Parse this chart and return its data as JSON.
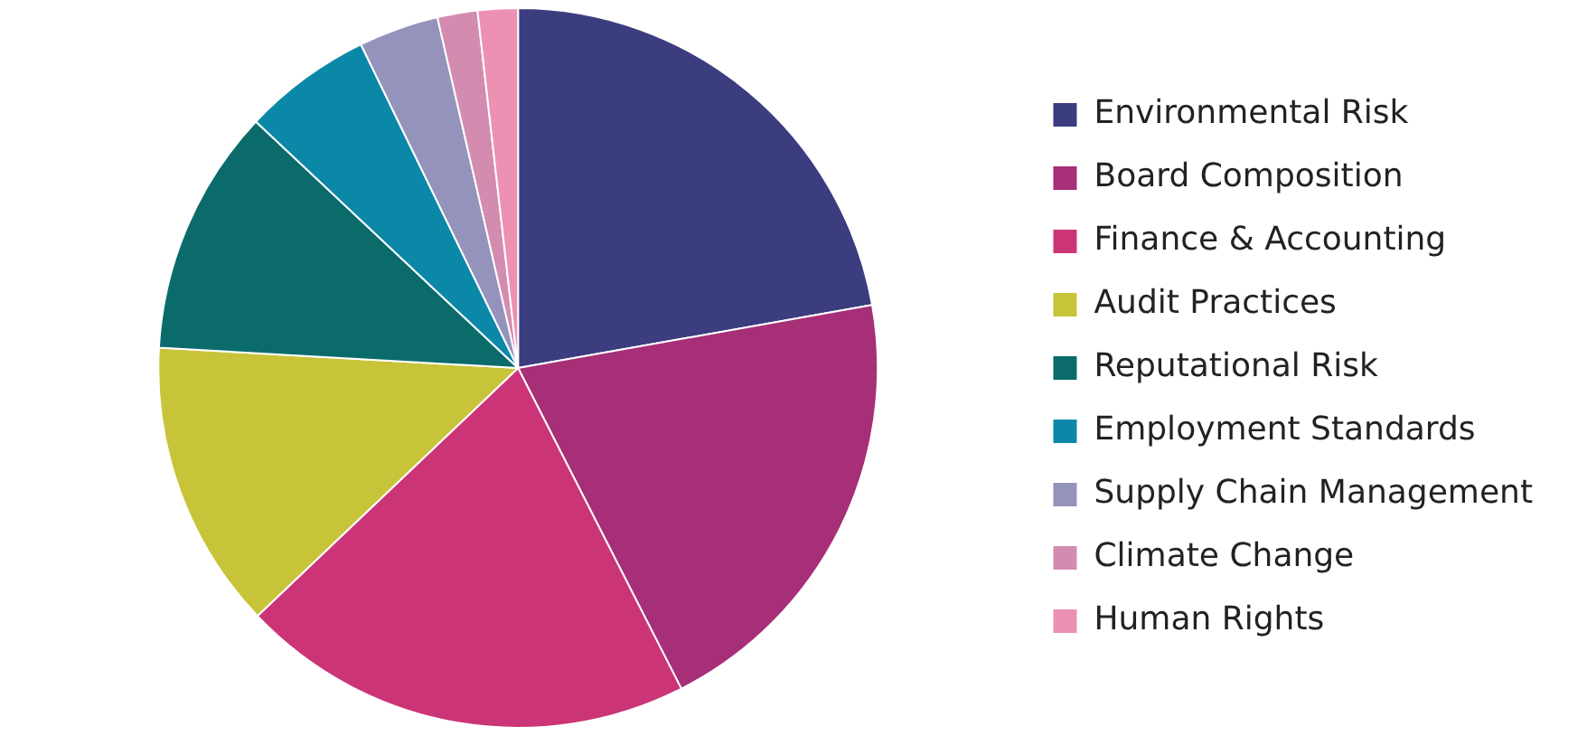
{
  "chart_data": {
    "type": "pie",
    "categories": [
      "Environmental Risk",
      "Board Composition",
      "Finance & Accounting",
      "Audit Practices",
      "Reputational Risk",
      "Employment Standards",
      "Supply Chain Management",
      "Climate Change",
      "Human Rights"
    ],
    "values": [
      22.2,
      20.3,
      20.4,
      13,
      11.1,
      5.8,
      3.6,
      1.8,
      1.8
    ],
    "colors": [
      "#3b3d7f",
      "#a62f78",
      "#cc3478",
      "#c8c43a",
      "#0b6b6b",
      "#0b88a8",
      "#9393bb",
      "#d38cb0",
      "#ec90b4"
    ],
    "legend": "right"
  }
}
